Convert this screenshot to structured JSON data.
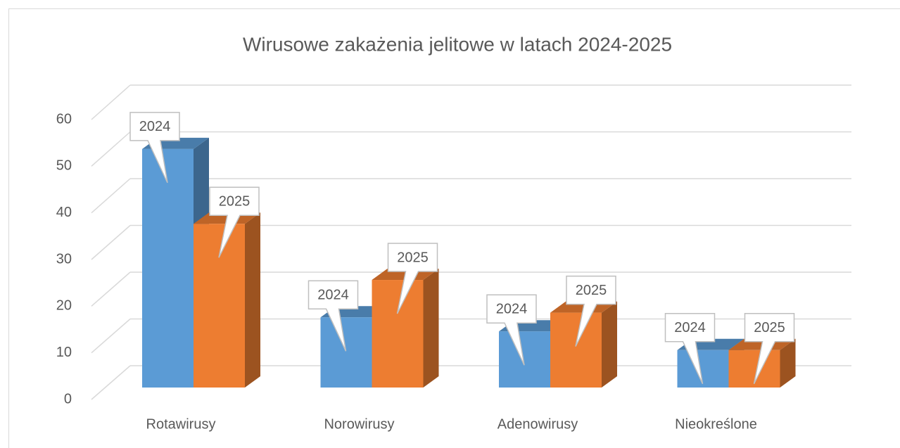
{
  "chart_data": {
    "type": "bar3d",
    "title": "Wirusowe zakażenia jelitowe w latach 2024-2025",
    "categories": [
      "Rotawirusy",
      "Norowirusy",
      "Adenowirusy",
      "Nieokreślone"
    ],
    "series": [
      {
        "name": "2024",
        "color": "#5b9bd5",
        "values": [
          51,
          15,
          12,
          8
        ]
      },
      {
        "name": "2025",
        "color": "#ed7d31",
        "values": [
          35,
          23,
          16,
          8
        ]
      }
    ],
    "ylim": [
      0,
      60
    ],
    "yticks": [
      0,
      10,
      20,
      30,
      40,
      50,
      60
    ],
    "grid": true
  }
}
